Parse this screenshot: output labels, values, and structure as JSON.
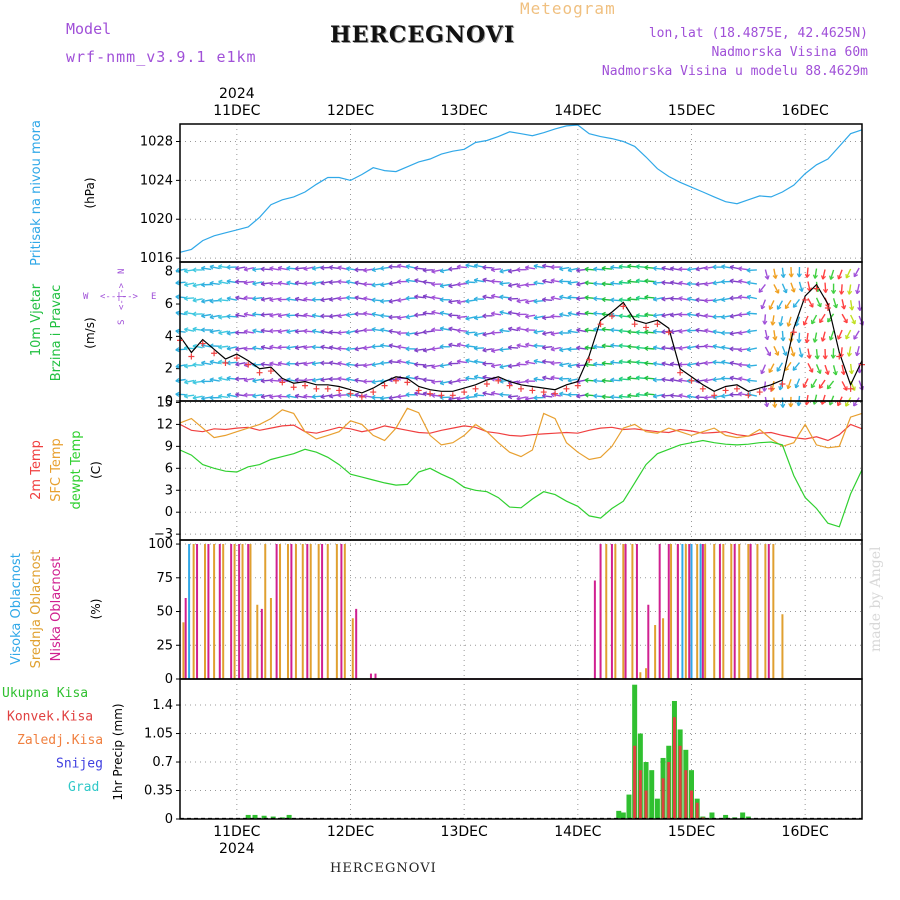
{
  "header": {
    "model_label": "Model",
    "model_name": "wrf-nmm_v3.9.1  e1km",
    "product": "Meteogram",
    "station": "HERCEGNOVI",
    "coords": "lon,lat (18.4875E, 42.4625N)",
    "elevation": "Nadmorska Visina 60m",
    "model_elevation": "Nadmorska Visina u modelu 88.4629m"
  },
  "footer": {
    "station": "HERCEGNOVI",
    "credit": "made by Angel"
  },
  "colors": {
    "pressure": "#30a8e8",
    "wind_label": "#20c040",
    "wind_dir": "#a050d8",
    "temp2m": "#f04040",
    "sfc_temp": "#e8a030",
    "dewpt": "#30d030",
    "high_cloud": "#30a8e8",
    "mid_cloud": "#e0a030",
    "low_cloud": "#d02090",
    "total_precip": "#30c030",
    "conv_precip": "#e04040",
    "frz_precip": "#f08040",
    "snow": "#4040e0",
    "hail": "#30c8c8"
  },
  "chart_data": [
    {
      "type": "line",
      "panel": "pressure",
      "title": "",
      "ylabel": [
        "Pritisak na nivou mora",
        "(hPa)"
      ],
      "yticks": [
        1016,
        1020,
        1024,
        1028
      ],
      "ylim": [
        1015.6,
        1029.8
      ],
      "top_axis": {
        "year": "2024",
        "labels": [
          "11DEC",
          "12DEC",
          "13DEC",
          "14DEC",
          "15DEC",
          "16DEC"
        ]
      },
      "x_days": [
        0.5,
        6.5
      ],
      "series": [
        {
          "x": [
            0.5,
            0.6,
            0.7,
            0.8,
            0.9,
            1.0,
            1.1,
            1.2,
            1.3,
            1.4,
            1.5,
            1.6,
            1.7,
            1.8,
            1.9,
            2.0,
            2.1,
            2.2,
            2.3,
            2.4,
            2.5,
            2.6,
            2.7,
            2.8,
            2.9,
            3.0,
            3.1,
            3.2,
            3.3,
            3.4,
            3.5,
            3.6,
            3.7,
            3.8,
            3.9,
            4.0,
            4.1,
            4.2,
            4.3,
            4.4,
            4.5,
            4.6,
            4.7,
            4.8,
            4.9,
            5.0,
            5.1,
            5.2,
            5.3,
            5.4,
            5.5,
            5.6,
            5.7,
            5.8,
            5.9,
            6.0,
            6.1,
            6.2,
            6.3,
            6.4,
            6.5
          ],
          "y": [
            1016.6,
            1016.9,
            1017.8,
            1018.3,
            1018.6,
            1018.9,
            1019.2,
            1020.2,
            1021.5,
            1022.0,
            1022.3,
            1022.8,
            1023.6,
            1024.3,
            1024.3,
            1024.0,
            1024.6,
            1025.3,
            1025.0,
            1024.9,
            1025.4,
            1025.9,
            1026.2,
            1026.7,
            1027.0,
            1027.2,
            1027.9,
            1028.1,
            1028.5,
            1029.0,
            1028.8,
            1028.6,
            1028.9,
            1029.3,
            1029.6,
            1029.7,
            1028.8,
            1028.5,
            1028.3,
            1028.0,
            1027.5,
            1026.4,
            1025.2,
            1024.4,
            1023.8,
            1023.3,
            1022.8,
            1022.3,
            1021.8,
            1021.6,
            1022.0,
            1022.4,
            1022.3,
            1022.8,
            1023.5,
            1024.7,
            1025.6,
            1026.2,
            1027.5,
            1028.8,
            1029.2
          ]
        }
      ]
    },
    {
      "type": "line",
      "panel": "wind",
      "title": "",
      "ylabel": [
        "10m Vjetar",
        "Brzina i Pravac",
        "(m/s)"
      ],
      "direction_legend": [
        "W",
        "<--|-->",
        "E",
        "S",
        "<-|->",
        "N"
      ],
      "yticks": [
        0,
        2,
        4,
        6,
        8
      ],
      "ylim": [
        0,
        8.6
      ],
      "series": [
        {
          "name": "wind speed",
          "x": [
            0.5,
            0.6,
            0.7,
            0.8,
            0.9,
            1.0,
            1.1,
            1.2,
            1.3,
            1.4,
            1.5,
            1.6,
            1.7,
            1.8,
            1.9,
            2.0,
            2.1,
            2.2,
            2.3,
            2.4,
            2.5,
            2.6,
            2.7,
            2.8,
            2.9,
            3.0,
            3.1,
            3.2,
            3.3,
            3.4,
            3.5,
            3.6,
            3.7,
            3.8,
            3.9,
            4.0,
            4.1,
            4.2,
            4.3,
            4.4,
            4.5,
            4.6,
            4.7,
            4.8,
            4.9,
            5.0,
            5.1,
            5.2,
            5.3,
            5.4,
            5.5,
            5.6,
            5.7,
            5.8,
            5.9,
            6.0,
            6.1,
            6.2,
            6.3,
            6.4,
            6.5
          ],
          "y": [
            4.0,
            3.0,
            3.8,
            3.2,
            2.6,
            2.9,
            2.5,
            2.0,
            2.1,
            1.4,
            1.1,
            1.2,
            1.0,
            1.0,
            0.9,
            0.7,
            0.5,
            0.8,
            1.2,
            1.5,
            1.4,
            0.9,
            0.7,
            0.6,
            0.6,
            0.8,
            1.0,
            1.3,
            1.5,
            1.2,
            1.0,
            0.9,
            0.8,
            0.7,
            1.0,
            1.2,
            2.8,
            5.0,
            5.5,
            6.1,
            5.0,
            4.8,
            5.0,
            4.5,
            2.0,
            1.5,
            1.0,
            0.6,
            0.9,
            1.0,
            0.6,
            0.8,
            1.0,
            1.3,
            4.5,
            6.5,
            7.2,
            6.0,
            3.0,
            1.0,
            2.5
          ]
        }
      ]
    },
    {
      "type": "line",
      "panel": "temperature",
      "title": "",
      "ylabel": [
        "2m Temp",
        "SFC Temp",
        "dewpt Temp",
        "(C)"
      ],
      "yticks": [
        -3,
        0,
        3,
        6,
        9,
        12,
        15
      ],
      "ylim": [
        -3.8,
        15.2
      ],
      "series": [
        {
          "name": "2m Temp",
          "x": [
            0.5,
            0.6,
            0.7,
            0.8,
            0.9,
            1.0,
            1.1,
            1.2,
            1.3,
            1.4,
            1.5,
            1.6,
            1.7,
            1.8,
            1.9,
            2.0,
            2.1,
            2.2,
            2.3,
            2.4,
            2.5,
            2.6,
            2.7,
            2.8,
            2.9,
            3.0,
            3.1,
            3.2,
            3.3,
            3.4,
            3.5,
            3.6,
            3.7,
            3.8,
            3.9,
            4.0,
            4.1,
            4.2,
            4.3,
            4.4,
            4.5,
            4.6,
            4.7,
            4.8,
            4.9,
            5.0,
            5.1,
            5.2,
            5.3,
            5.4,
            5.5,
            5.6,
            5.7,
            5.8,
            5.9,
            6.0,
            6.1,
            6.2,
            6.3,
            6.4,
            6.5
          ],
          "y": [
            12.0,
            11.2,
            11.0,
            11.4,
            11.3,
            11.5,
            11.6,
            11.2,
            11.5,
            11.8,
            11.9,
            11.0,
            10.8,
            11.2,
            11.6,
            11.4,
            11.0,
            11.3,
            11.8,
            11.5,
            11.2,
            10.9,
            10.8,
            11.2,
            11.5,
            11.8,
            11.6,
            11.0,
            10.8,
            10.5,
            10.4,
            10.6,
            10.7,
            10.8,
            10.9,
            10.8,
            11.2,
            11.5,
            11.6,
            11.3,
            11.4,
            11.2,
            11.0,
            10.9,
            11.3,
            11.1,
            10.8,
            10.9,
            11.0,
            10.6,
            10.4,
            10.8,
            10.9,
            10.5,
            10.2,
            10.0,
            10.3,
            9.8,
            10.6,
            12.0,
            11.4
          ]
        },
        {
          "name": "SFC Temp",
          "x": [
            0.5,
            0.6,
            0.7,
            0.8,
            0.9,
            1.0,
            1.1,
            1.2,
            1.3,
            1.4,
            1.5,
            1.6,
            1.7,
            1.8,
            1.9,
            2.0,
            2.1,
            2.2,
            2.3,
            2.4,
            2.5,
            2.6,
            2.7,
            2.8,
            2.9,
            3.0,
            3.1,
            3.2,
            3.3,
            3.4,
            3.5,
            3.6,
            3.7,
            3.8,
            3.9,
            4.0,
            4.1,
            4.2,
            4.3,
            4.4,
            4.5,
            4.6,
            4.7,
            4.8,
            4.9,
            5.0,
            5.1,
            5.2,
            5.3,
            5.4,
            5.5,
            5.6,
            5.7,
            5.8,
            5.9,
            6.0,
            6.1,
            6.2,
            6.3,
            6.4,
            6.5
          ],
          "y": [
            12.2,
            12.8,
            11.5,
            10.2,
            10.5,
            11.0,
            11.5,
            12.0,
            12.8,
            14.0,
            13.5,
            11.0,
            10.0,
            10.5,
            11.0,
            12.5,
            12.0,
            10.5,
            9.8,
            11.5,
            14.2,
            13.6,
            10.5,
            9.2,
            9.5,
            10.5,
            12.0,
            11.0,
            9.5,
            8.2,
            7.6,
            8.5,
            13.5,
            12.8,
            9.5,
            8.2,
            7.2,
            7.5,
            9.0,
            11.5,
            12.0,
            11.0,
            10.8,
            11.5,
            11.0,
            10.5,
            11.0,
            11.5,
            10.5,
            10.2,
            10.4,
            11.3,
            10.0,
            9.0,
            9.5,
            12.0,
            9.2,
            8.8,
            9.0,
            13.0,
            13.5
          ]
        },
        {
          "name": "dewpt Temp",
          "x": [
            0.5,
            0.6,
            0.7,
            0.8,
            0.9,
            1.0,
            1.1,
            1.2,
            1.3,
            1.4,
            1.5,
            1.6,
            1.7,
            1.8,
            1.9,
            2.0,
            2.1,
            2.2,
            2.3,
            2.4,
            2.5,
            2.6,
            2.7,
            2.8,
            2.9,
            3.0,
            3.1,
            3.2,
            3.3,
            3.4,
            3.5,
            3.6,
            3.7,
            3.8,
            3.9,
            4.0,
            4.1,
            4.2,
            4.3,
            4.4,
            4.5,
            4.6,
            4.7,
            4.8,
            4.9,
            5.0,
            5.1,
            5.2,
            5.3,
            5.4,
            5.5,
            5.6,
            5.7,
            5.8,
            5.9,
            6.0,
            6.1,
            6.2,
            6.3,
            6.4,
            6.5
          ],
          "y": [
            8.5,
            7.8,
            6.5,
            6.0,
            5.6,
            5.5,
            6.2,
            6.5,
            7.2,
            7.6,
            8.0,
            8.6,
            8.2,
            7.5,
            6.5,
            5.2,
            4.8,
            4.4,
            4.0,
            3.7,
            3.8,
            5.5,
            6.0,
            5.2,
            4.5,
            3.4,
            3.0,
            2.8,
            2.0,
            0.7,
            0.6,
            1.8,
            2.8,
            2.4,
            1.5,
            0.8,
            -0.5,
            -0.8,
            0.5,
            1.5,
            4.0,
            6.5,
            8.0,
            8.6,
            9.2,
            9.5,
            9.8,
            9.5,
            9.3,
            9.2,
            9.3,
            9.5,
            9.6,
            9.2,
            5.0,
            2.0,
            0.5,
            -1.5,
            -2.0,
            2.5,
            5.8
          ]
        }
      ]
    },
    {
      "type": "bar",
      "panel": "cloud",
      "title": "",
      "ylabel": [
        "Visoka Oblacnost",
        "Srednja Oblacnost",
        "Niska Oblacnost",
        "(%)"
      ],
      "yticks": [
        0,
        25,
        50,
        75,
        100
      ],
      "ylim": [
        0,
        103
      ],
      "series": [
        {
          "name": "Visoka Oblacnost",
          "x": [
            0.58,
            4.92,
            5.0,
            5.08
          ],
          "values": [
            100,
            100,
            100,
            100
          ]
        },
        {
          "name": "Srednja Oblacnost",
          "x": [
            0.53,
            0.62,
            0.72,
            0.8,
            0.88,
            0.98,
            1.05,
            1.12,
            1.18,
            1.25,
            1.3,
            1.38,
            1.45,
            1.52,
            1.58,
            1.65,
            1.72,
            1.8,
            1.88,
            1.95,
            2.02,
            4.25,
            4.33,
            4.4,
            4.48,
            4.55,
            4.6,
            4.68,
            4.75,
            4.82,
            4.88,
            4.95,
            5.05,
            5.12,
            5.2,
            5.28,
            5.35,
            5.42,
            5.5,
            5.58,
            5.65,
            5.72,
            5.8
          ],
          "values": [
            42,
            100,
            100,
            100,
            100,
            100,
            100,
            100,
            55,
            100,
            60,
            100,
            100,
            100,
            100,
            100,
            100,
            100,
            100,
            100,
            45,
            100,
            100,
            100,
            100,
            5,
            8,
            40,
            45,
            100,
            100,
            100,
            100,
            100,
            100,
            100,
            100,
            100,
            100,
            100,
            100,
            100,
            48
          ]
        },
        {
          "name": "Niska Oblacnost",
          "x": [
            0.55,
            0.65,
            0.75,
            0.85,
            0.95,
            1.02,
            1.1,
            1.22,
            1.35,
            1.48,
            1.62,
            1.75,
            1.92,
            2.05,
            2.18,
            2.22,
            4.15,
            4.2,
            4.3,
            4.42,
            4.52,
            4.62,
            4.72,
            4.8,
            4.88,
            4.98,
            5.1,
            5.25,
            5.38,
            5.52,
            5.68
          ],
          "values": [
            60,
            100,
            100,
            100,
            100,
            100,
            100,
            52,
            100,
            100,
            100,
            100,
            100,
            52,
            4,
            4,
            73,
            100,
            100,
            100,
            100,
            55,
            100,
            100,
            100,
            100,
            100,
            100,
            100,
            100,
            100
          ]
        }
      ]
    },
    {
      "type": "bar",
      "panel": "precip",
      "title": "",
      "ylabel": [
        "1hr Precip (mm)"
      ],
      "legend": [
        "Ukupna Kisa",
        "Konvek.Kisa",
        "Zaledj.Kisa",
        "Snijeg",
        "Grad"
      ],
      "yticks": [
        0,
        0.35,
        0.7,
        1.05,
        1.4
      ],
      "ylim": [
        0,
        1.72
      ],
      "bottom_axis": {
        "labels": [
          "11DEC",
          "12DEC",
          "13DEC",
          "14DEC",
          "15DEC",
          "16DEC"
        ],
        "year": "2024"
      },
      "series": [
        {
          "name": "Ukupna Kisa",
          "x": [
            1.1,
            1.16,
            1.24,
            1.32,
            1.4,
            1.46,
            4.36,
            4.4,
            4.45,
            4.5,
            4.55,
            4.6,
            4.65,
            4.7,
            4.75,
            4.8,
            4.85,
            4.9,
            4.95,
            5.0,
            5.05,
            5.1,
            5.18,
            5.3,
            5.38,
            5.45,
            5.5
          ],
          "values": [
            0.05,
            0.05,
            0.04,
            0.03,
            0.02,
            0.05,
            0.1,
            0.08,
            0.3,
            1.65,
            1.05,
            0.7,
            0.6,
            0.25,
            0.75,
            0.9,
            1.45,
            1.1,
            0.85,
            0.6,
            0.25,
            0.03,
            0.08,
            0.05,
            0.02,
            0.08,
            0.03
          ]
        },
        {
          "name": "Konvek.Kisa",
          "x": [
            4.5,
            4.55,
            4.6,
            4.75,
            4.8,
            4.85,
            4.9,
            4.95,
            5.0,
            5.05,
            5.1
          ],
          "values": [
            0.9,
            0.6,
            0.35,
            0.5,
            0.7,
            1.25,
            0.9,
            0.6,
            0.35,
            0.2,
            0.02
          ]
        }
      ]
    }
  ]
}
